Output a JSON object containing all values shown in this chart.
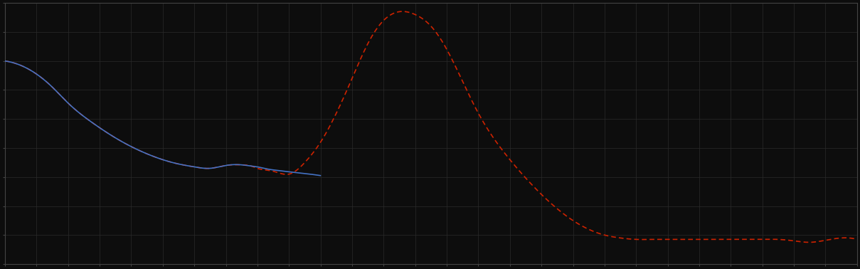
{
  "background_color": "#0d0d0d",
  "plot_bg_color": "#0d0d0d",
  "grid_color": "#2a2a2a",
  "line1_color": "#4472c4",
  "line2_color": "#cc2200",
  "figsize": [
    12.09,
    3.78
  ],
  "dpi": 100,
  "n_grid_cols": 27,
  "n_grid_rows": 9
}
